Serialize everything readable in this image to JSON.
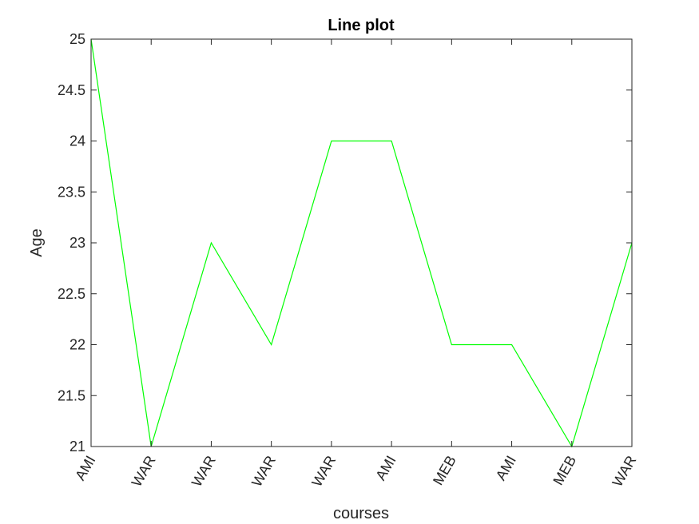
{
  "chart_data": {
    "type": "line",
    "title": "Line plot",
    "xlabel": "courses",
    "ylabel": "Age",
    "categories": [
      "AMI",
      "WAR",
      "WAR",
      "WAR",
      "WAR",
      "AMI",
      "MEB",
      "AMI",
      "MEB",
      "WAR"
    ],
    "series": [
      {
        "values": [
          25,
          21,
          23,
          22,
          24,
          24,
          22,
          22,
          21,
          23
        ],
        "color": "#00ff00"
      }
    ],
    "ylim": [
      21,
      25
    ],
    "yticks": [
      21,
      21.5,
      22,
      22.5,
      23,
      23.5,
      24,
      24.5,
      25
    ],
    "ytick_labels": [
      "21",
      "21.5",
      "22",
      "22.5",
      "23",
      "23.5",
      "24",
      "24.5",
      "25"
    ],
    "grid": false,
    "box": true
  }
}
